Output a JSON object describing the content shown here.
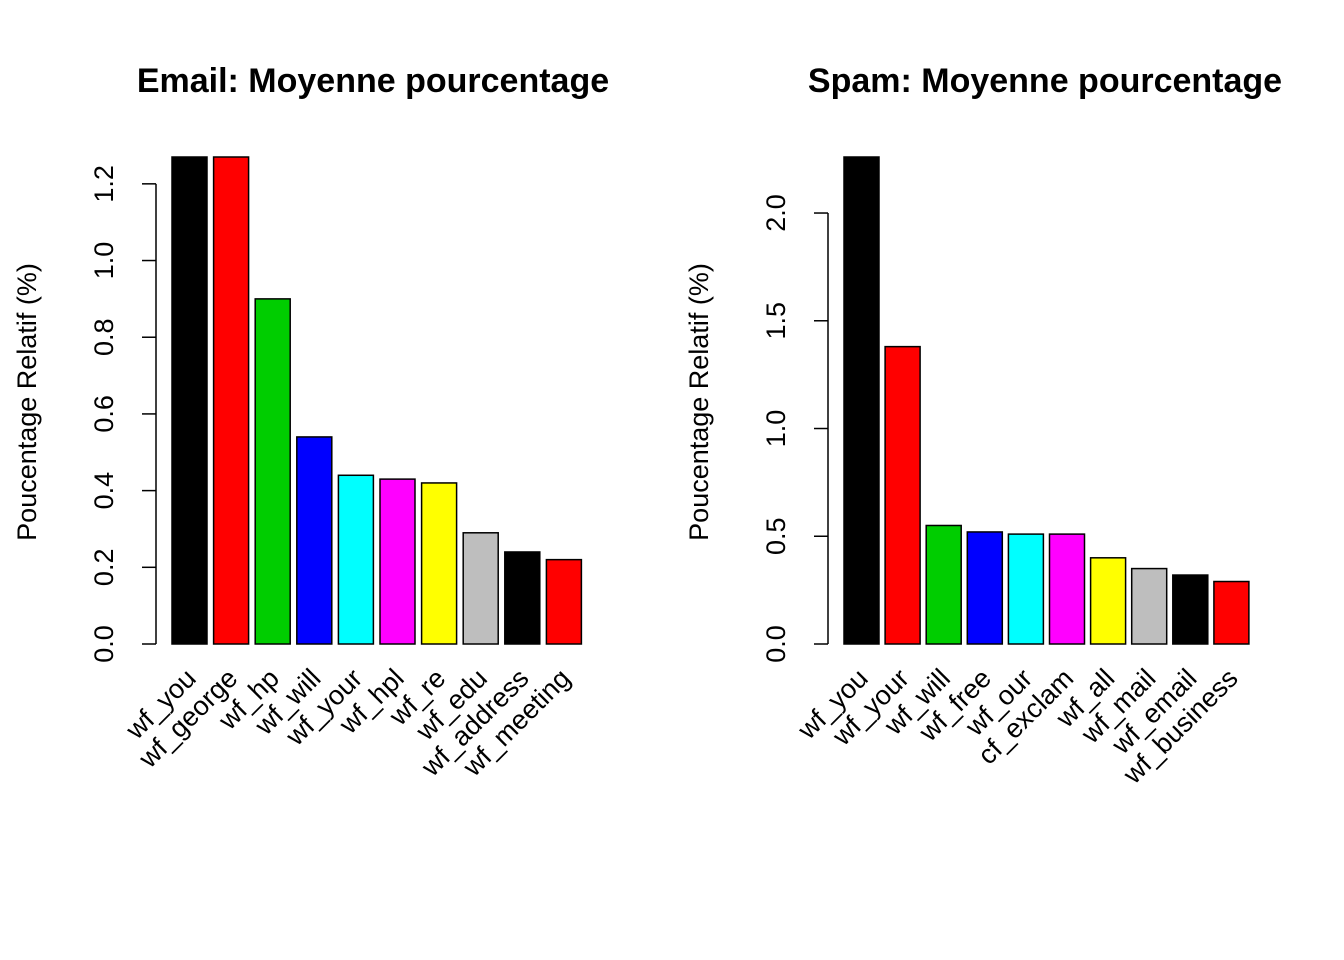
{
  "chart_data": [
    {
      "type": "bar",
      "title": "Email: Moyenne pourcentage",
      "xlabel": "",
      "ylabel": "Poucentage Relatif (%)",
      "ylim": [
        0,
        1.27
      ],
      "yticks": [
        "0.0",
        "0.2",
        "0.4",
        "0.6",
        "0.8",
        "1.0",
        "1.2"
      ],
      "categories": [
        "wf_you",
        "wf_george",
        "wf_hp",
        "wf_will",
        "wf_your",
        "wf_hpl",
        "wf_re",
        "wf_edu",
        "wf_address",
        "wf_meeting"
      ],
      "values": [
        1.27,
        1.27,
        0.9,
        0.54,
        0.44,
        0.43,
        0.42,
        0.29,
        0.24,
        0.22
      ],
      "colors": [
        "#000000",
        "#FF0000",
        "#00CD00",
        "#0000FF",
        "#00FFFF",
        "#FF00FF",
        "#FFFF00",
        "#BEBEBE",
        "#000000",
        "#FF0000"
      ],
      "grid": false
    },
    {
      "type": "bar",
      "title": "Spam: Moyenne pourcentage",
      "xlabel": "",
      "ylabel": "Poucentage Relatif (%)",
      "ylim": [
        0,
        2.26
      ],
      "yticks": [
        "0.0",
        "0.5",
        "1.0",
        "1.5",
        "2.0"
      ],
      "categories": [
        "wf_you",
        "wf_your",
        "wf_will",
        "wf_free",
        "wf_our",
        "cf_exclam",
        "wf_all",
        "wf_mail",
        "wf_email",
        "wf_business"
      ],
      "values": [
        2.26,
        1.38,
        0.55,
        0.52,
        0.51,
        0.51,
        0.4,
        0.35,
        0.32,
        0.29
      ],
      "colors": [
        "#000000",
        "#FF0000",
        "#00CD00",
        "#0000FF",
        "#00FFFF",
        "#FF00FF",
        "#FFFF00",
        "#BEBEBE",
        "#000000",
        "#FF0000"
      ],
      "grid": false
    }
  ]
}
